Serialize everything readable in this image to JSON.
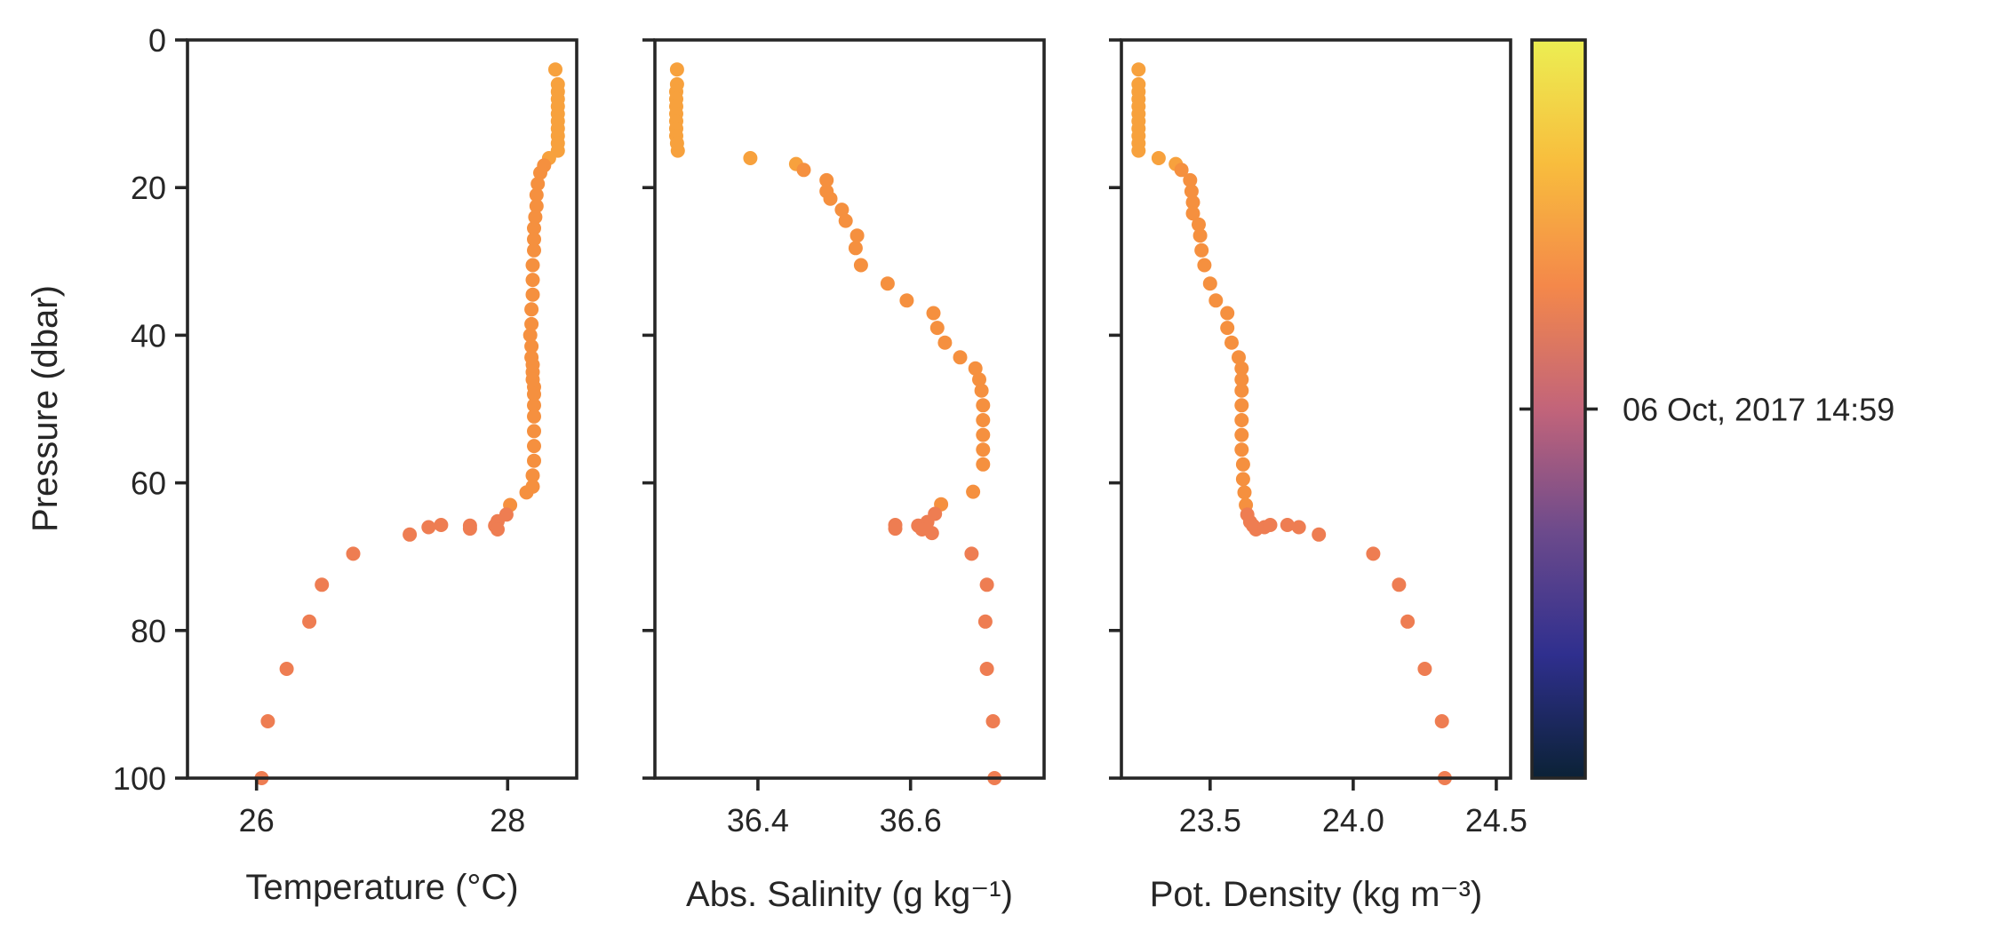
{
  "chart_data": [
    {
      "type": "scatter",
      "xlabel": "Temperature (°C)",
      "ylabel": "Pressure (dbar)",
      "xlim": [
        25.45,
        28.55
      ],
      "ylim": [
        100,
        0
      ],
      "xticks": [
        "26",
        "28"
      ],
      "yticks": [
        "0",
        "20",
        "40",
        "60",
        "80",
        "100"
      ],
      "points": [
        [
          28.38,
          4
        ],
        [
          28.4,
          6
        ],
        [
          28.4,
          7
        ],
        [
          28.4,
          8
        ],
        [
          28.4,
          9
        ],
        [
          28.4,
          10
        ],
        [
          28.4,
          11
        ],
        [
          28.4,
          12
        ],
        [
          28.4,
          13
        ],
        [
          28.4,
          14
        ],
        [
          28.4,
          15
        ],
        [
          28.33,
          16
        ],
        [
          28.29,
          17
        ],
        [
          28.26,
          18
        ],
        [
          28.24,
          19.5
        ],
        [
          28.23,
          21
        ],
        [
          28.23,
          22.5
        ],
        [
          28.22,
          24
        ],
        [
          28.21,
          25.5
        ],
        [
          28.21,
          27
        ],
        [
          28.21,
          28.5
        ],
        [
          28.2,
          30.5
        ],
        [
          28.2,
          32.5
        ],
        [
          28.2,
          34.5
        ],
        [
          28.19,
          36.5
        ],
        [
          28.19,
          38.5
        ],
        [
          28.18,
          40
        ],
        [
          28.19,
          41.5
        ],
        [
          28.19,
          43
        ],
        [
          28.2,
          44
        ],
        [
          28.2,
          45
        ],
        [
          28.2,
          46
        ],
        [
          28.21,
          47
        ],
        [
          28.21,
          48
        ],
        [
          28.21,
          49.5
        ],
        [
          28.21,
          51
        ],
        [
          28.21,
          53
        ],
        [
          28.21,
          55
        ],
        [
          28.21,
          57
        ],
        [
          28.2,
          59
        ],
        [
          28.2,
          60.5
        ],
        [
          28.15,
          61.3
        ],
        [
          28.02,
          63
        ],
        [
          27.99,
          64.3
        ],
        [
          27.92,
          65.2
        ],
        [
          27.9,
          65.8
        ],
        [
          27.92,
          66.3
        ],
        [
          27.7,
          65.8
        ],
        [
          27.7,
          66.2
        ],
        [
          27.47,
          65.7
        ],
        [
          27.37,
          66
        ],
        [
          27.22,
          67
        ],
        [
          26.77,
          69.6
        ],
        [
          26.52,
          73.8
        ],
        [
          26.42,
          78.8
        ],
        [
          26.24,
          85.2
        ],
        [
          26.09,
          92.3
        ],
        [
          26.04,
          100
        ]
      ]
    },
    {
      "type": "scatter",
      "xlabel": "Abs. Salinity (g kg⁻¹)",
      "xlim": [
        36.265,
        36.775
      ],
      "ylim": [
        100,
        0
      ],
      "xticks": [
        "36.4",
        "36.6"
      ],
      "points": [
        [
          36.294,
          4
        ],
        [
          36.294,
          6
        ],
        [
          36.293,
          7
        ],
        [
          36.293,
          8
        ],
        [
          36.293,
          9
        ],
        [
          36.293,
          10
        ],
        [
          36.293,
          11
        ],
        [
          36.293,
          12
        ],
        [
          36.293,
          13
        ],
        [
          36.294,
          14
        ],
        [
          36.295,
          15
        ],
        [
          36.39,
          16
        ],
        [
          36.45,
          16.8
        ],
        [
          36.46,
          17.6
        ],
        [
          36.49,
          19
        ],
        [
          36.49,
          20.5
        ],
        [
          36.495,
          21.5
        ],
        [
          36.51,
          23
        ],
        [
          36.515,
          24.5
        ],
        [
          36.53,
          26.5
        ],
        [
          36.528,
          28.2
        ],
        [
          36.535,
          30.5
        ],
        [
          36.57,
          33
        ],
        [
          36.595,
          35.3
        ],
        [
          36.63,
          37
        ],
        [
          36.635,
          39
        ],
        [
          36.645,
          41
        ],
        [
          36.665,
          43
        ],
        [
          36.685,
          44.5
        ],
        [
          36.69,
          46
        ],
        [
          36.693,
          47.5
        ],
        [
          36.695,
          49.5
        ],
        [
          36.695,
          51.5
        ],
        [
          36.695,
          53.5
        ],
        [
          36.695,
          55.5
        ],
        [
          36.695,
          57.5
        ],
        [
          36.682,
          61.2
        ],
        [
          36.64,
          62.9
        ],
        [
          36.632,
          64.2
        ],
        [
          36.622,
          65.3
        ],
        [
          36.61,
          65.8
        ],
        [
          36.615,
          66.3
        ],
        [
          36.628,
          66.8
        ],
        [
          36.58,
          65.7
        ],
        [
          36.58,
          66.2
        ],
        [
          36.68,
          69.6
        ],
        [
          36.7,
          73.8
        ],
        [
          36.698,
          78.8
        ],
        [
          36.7,
          85.2
        ],
        [
          36.708,
          92.3
        ],
        [
          36.71,
          100
        ]
      ]
    },
    {
      "type": "scatter",
      "xlabel": "Pot. Density (kg m⁻³)",
      "xlim": [
        23.19,
        24.55
      ],
      "ylim": [
        100,
        0
      ],
      "xticks": [
        "23.5",
        "24.0",
        "24.5"
      ],
      "points": [
        [
          23.25,
          4
        ],
        [
          23.25,
          6
        ],
        [
          23.25,
          7
        ],
        [
          23.25,
          8
        ],
        [
          23.25,
          9
        ],
        [
          23.25,
          10
        ],
        [
          23.25,
          11
        ],
        [
          23.25,
          12
        ],
        [
          23.25,
          13
        ],
        [
          23.25,
          14
        ],
        [
          23.25,
          15
        ],
        [
          23.32,
          16
        ],
        [
          23.38,
          16.8
        ],
        [
          23.4,
          17.6
        ],
        [
          23.43,
          19
        ],
        [
          23.435,
          20.5
        ],
        [
          23.44,
          22
        ],
        [
          23.44,
          23.5
        ],
        [
          23.46,
          25
        ],
        [
          23.465,
          26.5
        ],
        [
          23.47,
          28.5
        ],
        [
          23.48,
          30.5
        ],
        [
          23.5,
          33
        ],
        [
          23.52,
          35.3
        ],
        [
          23.56,
          37
        ],
        [
          23.56,
          39
        ],
        [
          23.575,
          41
        ],
        [
          23.6,
          43
        ],
        [
          23.61,
          44.5
        ],
        [
          23.61,
          46
        ],
        [
          23.61,
          47.5
        ],
        [
          23.61,
          49.5
        ],
        [
          23.61,
          51.5
        ],
        [
          23.61,
          53.5
        ],
        [
          23.61,
          55.5
        ],
        [
          23.615,
          57.5
        ],
        [
          23.615,
          59.5
        ],
        [
          23.62,
          61.3
        ],
        [
          23.625,
          63
        ],
        [
          23.63,
          64.3
        ],
        [
          23.64,
          65.3
        ],
        [
          23.65,
          65.8
        ],
        [
          23.66,
          66.3
        ],
        [
          23.69,
          66
        ],
        [
          23.71,
          65.7
        ],
        [
          23.77,
          65.7
        ],
        [
          23.81,
          66
        ],
        [
          23.88,
          67
        ],
        [
          24.07,
          69.6
        ],
        [
          24.16,
          73.8
        ],
        [
          24.19,
          78.8
        ],
        [
          24.25,
          85.2
        ],
        [
          24.31,
          92.3
        ],
        [
          24.32,
          100
        ]
      ]
    }
  ],
  "colorbar": {
    "tick_label": "06 Oct, 2017 14:59",
    "tick_fraction": 0.5,
    "colormap": [
      "#0b2236",
      "#2f2f8e",
      "#6c4a8c",
      "#c2647a",
      "#f4884a",
      "#f8bd3d",
      "#ecee52"
    ]
  },
  "colors": {
    "point_upper": "#f7a13d",
    "point_mid": "#f5903f",
    "point_lower": "#ee7d52",
    "axis": "#262626"
  }
}
